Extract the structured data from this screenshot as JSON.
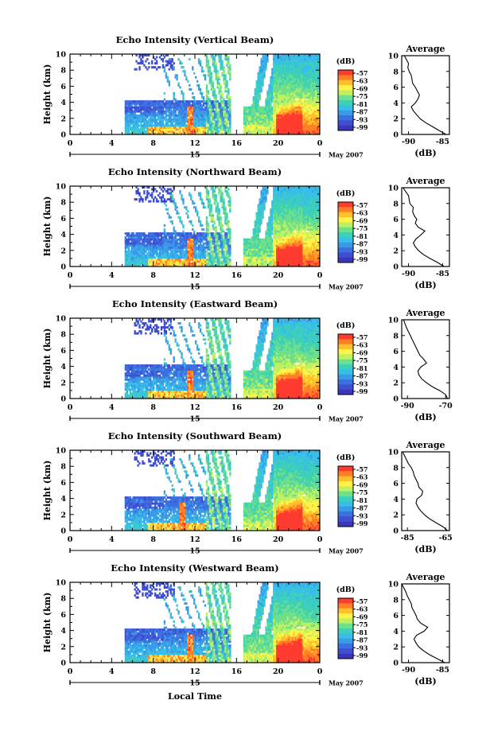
{
  "figure": {
    "date_label": "May 2007",
    "xlabel": "Local Time",
    "colorbar_unit": "(dB)",
    "colorbar_ticks": [
      "-57",
      "-63",
      "-69",
      "-75",
      "-81",
      "-87",
      "-93",
      "-99"
    ],
    "colorbar_colors": [
      "#ff3b2f",
      "#ff7f27",
      "#ffc02a",
      "#fff34a",
      "#bff061",
      "#6fe08a",
      "#3fd1b5",
      "#38bfe8",
      "#3b9ae8",
      "#3d6fe0",
      "#3f4fd0",
      "#3b35b8"
    ]
  },
  "chart_data": [
    {
      "type": "heatmap",
      "title": "Echo Intensity (Vertical Beam)",
      "ylabel": "Height (km)",
      "x_ticks": [
        "0",
        "4",
        "8",
        "12",
        "16",
        "20",
        "0"
      ],
      "day_label": "15",
      "y_ticks": [
        "0",
        "2",
        "4",
        "6",
        "8",
        "10"
      ],
      "xlim": [
        0,
        24
      ],
      "ylim": [
        0,
        10
      ],
      "clim": [
        -99,
        -57
      ],
      "profile": {
        "title": "Average",
        "xlabel": "(dB)",
        "x_ticks": [
          "-90",
          "-85"
        ],
        "xlim": [
          -91,
          -84
        ],
        "y": [
          0,
          0.5,
          1,
          1.5,
          2,
          2.5,
          3,
          3.5,
          4,
          4.5,
          5,
          5.5,
          6,
          6.5,
          7,
          7.5,
          8,
          8.5,
          9,
          9.5,
          10
        ],
        "x": [
          -84.5,
          -85.5,
          -86.5,
          -87.5,
          -88.3,
          -88.8,
          -89.3,
          -89.6,
          -89.0,
          -88.6,
          -88.4,
          -88.7,
          -89.0,
          -89.4,
          -89.5,
          -89.6,
          -89.9,
          -90.1,
          -90.0,
          -90.3,
          -90.6
        ]
      }
    },
    {
      "type": "heatmap",
      "title": "Echo Intensity (Northward Beam)",
      "ylabel": "Height (km)",
      "x_ticks": [
        "0",
        "4",
        "8",
        "12",
        "16",
        "20",
        "0"
      ],
      "day_label": "15",
      "y_ticks": [
        "0",
        "2",
        "4",
        "6",
        "8",
        "10"
      ],
      "xlim": [
        0,
        24
      ],
      "ylim": [
        0,
        10
      ],
      "clim": [
        -99,
        -57
      ],
      "profile": {
        "title": "Average",
        "xlabel": "(dB)",
        "x_ticks": [
          "-90",
          "-85"
        ],
        "xlim": [
          -91,
          -84
        ],
        "y": [
          0,
          0.5,
          1,
          1.5,
          2,
          2.5,
          3,
          3.5,
          4,
          4.5,
          5,
          5.5,
          6,
          6.5,
          7,
          7.5,
          8,
          8.5,
          9,
          9.5,
          10
        ],
        "x": [
          -84.8,
          -85.7,
          -86.8,
          -87.8,
          -88.5,
          -89.0,
          -89.3,
          -88.9,
          -88.2,
          -87.6,
          -88.6,
          -89.0,
          -88.8,
          -89.2,
          -89.4,
          -89.3,
          -89.8,
          -89.9,
          -90.0,
          -90.4,
          -90.8
        ]
      }
    },
    {
      "type": "heatmap",
      "title": "Echo Intensity (Eastward Beam)",
      "ylabel": "Height (km)",
      "x_ticks": [
        "0",
        "4",
        "8",
        "12",
        "16",
        "20",
        "0"
      ],
      "day_label": "15",
      "y_ticks": [
        "0",
        "2",
        "4",
        "6",
        "8",
        "10"
      ],
      "xlim": [
        0,
        24
      ],
      "ylim": [
        0,
        10
      ],
      "clim": [
        -99,
        -57
      ],
      "profile": {
        "title": "Average",
        "xlabel": "(dB)",
        "x_ticks": [
          "-90",
          "-70"
        ],
        "xlim": [
          -93,
          -68
        ],
        "y": [
          0,
          0.5,
          1,
          1.5,
          2,
          2.5,
          3,
          3.5,
          4,
          4.5,
          5,
          5.5,
          6,
          6.5,
          7,
          7.5,
          8,
          8.5,
          9,
          9.5,
          10
        ],
        "x": [
          -69.0,
          -70.0,
          -73.0,
          -77.0,
          -80.0,
          -82.5,
          -84.0,
          -84.5,
          -83.0,
          -80.0,
          -81.5,
          -83.5,
          -84.5,
          -85.5,
          -86.5,
          -87.5,
          -88.5,
          -89.5,
          -90.5,
          -91.3,
          -92.0
        ]
      }
    },
    {
      "type": "heatmap",
      "title": "Echo Intensity (Southward Beam)",
      "ylabel": "Height (km)",
      "x_ticks": [
        "0",
        "4",
        "8",
        "12",
        "16",
        "20",
        "0"
      ],
      "day_label": "15",
      "y_ticks": [
        "0",
        "2",
        "4",
        "6",
        "8",
        "10"
      ],
      "xlim": [
        0,
        24
      ],
      "ylim": [
        0,
        10
      ],
      "clim": [
        -99,
        -57
      ],
      "profile": {
        "title": "Average",
        "xlabel": "(dB)",
        "x_ticks": [
          "-85",
          "-65"
        ],
        "xlim": [
          -88,
          -63
        ],
        "y": [
          0,
          0.5,
          1,
          1.5,
          2,
          2.5,
          3,
          3.5,
          4,
          4.5,
          5,
          5.5,
          6,
          6.5,
          7,
          7.5,
          8,
          8.5,
          9,
          9.5,
          10
        ],
        "x": [
          -64.0,
          -66.5,
          -70.0,
          -73.5,
          -76.0,
          -78.0,
          -79.5,
          -80.5,
          -80.0,
          -77.5,
          -77.0,
          -79.0,
          -79.5,
          -80.5,
          -81.5,
          -82.0,
          -83.0,
          -84.5,
          -85.5,
          -86.5,
          -87.5
        ]
      }
    },
    {
      "type": "heatmap",
      "title": "Echo Intensity (Westward Beam)",
      "ylabel": "Height (km)",
      "x_ticks": [
        "0",
        "4",
        "8",
        "12",
        "16",
        "20",
        "0"
      ],
      "day_label": "15",
      "y_ticks": [
        "0",
        "2",
        "4",
        "6",
        "8",
        "10"
      ],
      "xlim": [
        0,
        24
      ],
      "ylim": [
        0,
        10
      ],
      "clim": [
        -99,
        -57
      ],
      "profile": {
        "title": "Average",
        "xlabel": "(dB)",
        "x_ticks": [
          "-90",
          "-85"
        ],
        "xlim": [
          -91,
          -84
        ],
        "y": [
          0,
          0.5,
          1,
          1.5,
          2,
          2.5,
          3,
          3.5,
          4,
          4.5,
          5,
          5.5,
          6,
          6.5,
          7,
          7.5,
          8,
          8.5,
          9,
          9.5,
          10
        ],
        "x": [
          -84.7,
          -85.8,
          -86.9,
          -87.8,
          -88.5,
          -88.9,
          -89.2,
          -88.8,
          -87.7,
          -87.2,
          -88.2,
          -88.7,
          -88.9,
          -89.2,
          -89.5,
          -89.6,
          -89.9,
          -90.2,
          -90.4,
          -90.7,
          -91.0
        ]
      }
    }
  ]
}
